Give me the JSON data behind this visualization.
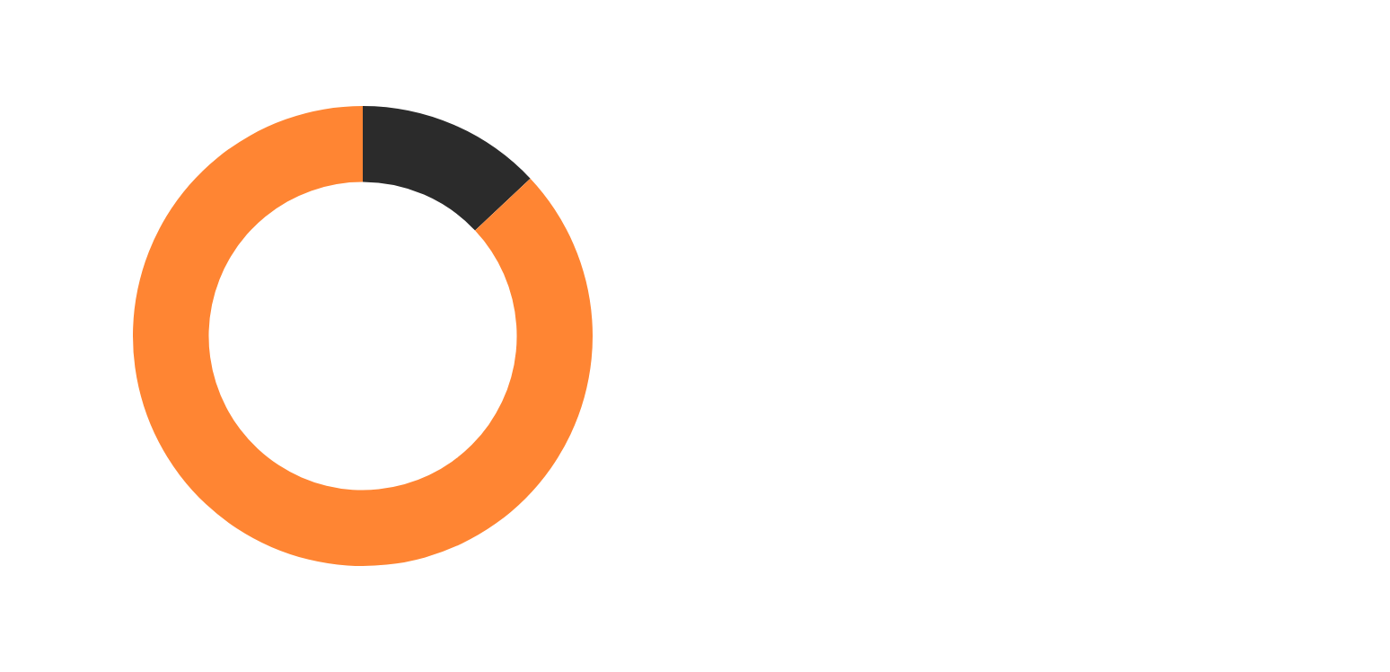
{
  "chart_data": {
    "type": "donut",
    "categories": [
      null,
      null
    ],
    "values": [
      13,
      87
    ],
    "colors": [
      "#2b2b2b",
      "#ff8533"
    ]
  }
}
